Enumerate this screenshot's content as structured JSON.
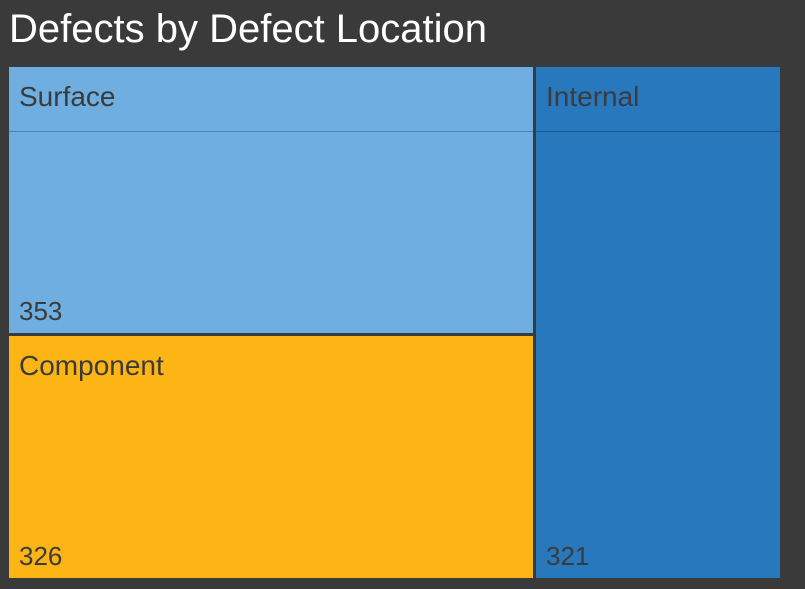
{
  "chart_data": {
    "type": "treemap",
    "title": "Defects by Defect Location",
    "items": [
      {
        "label": "Surface",
        "value": 353,
        "color": "#6eaee0"
      },
      {
        "label": "Component",
        "value": 326,
        "color": "#fdb515"
      },
      {
        "label": "Internal",
        "value": 321,
        "color": "#2878be"
      }
    ]
  }
}
